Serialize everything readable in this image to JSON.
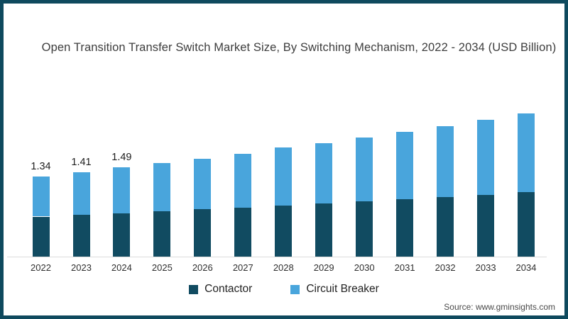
{
  "page": {
    "background": "#ffffff",
    "frame_color": "#0f4a5e"
  },
  "chart_data": {
    "type": "bar",
    "stacked": true,
    "title": "Open Transition Transfer Switch Market Size, By Switching Mechanism, 2022 - 2034 (USD Billion)",
    "categories": [
      "2022",
      "2023",
      "2024",
      "2025",
      "2026",
      "2027",
      "2028",
      "2029",
      "2030",
      "2031",
      "2032",
      "2033",
      "2034"
    ],
    "series": [
      {
        "name": "Contactor",
        "color": "#114b61",
        "values": [
          0.67,
          0.7,
          0.72,
          0.76,
          0.79,
          0.82,
          0.85,
          0.89,
          0.92,
          0.96,
          1.0,
          1.03,
          1.08
        ]
      },
      {
        "name": "Circuit Breaker",
        "color": "#49a5dc",
        "values": [
          0.67,
          0.71,
          0.77,
          0.81,
          0.85,
          0.9,
          0.97,
          1.01,
          1.07,
          1.12,
          1.18,
          1.26,
          1.31
        ]
      }
    ],
    "totals": [
      1.34,
      1.41,
      1.49,
      1.57,
      1.64,
      1.72,
      1.82,
      1.9,
      1.99,
      2.08,
      2.18,
      2.29,
      2.39
    ],
    "total_labels": [
      "1.34",
      "1.41",
      "1.49",
      "",
      "",
      "",
      "",
      "",
      "",
      "",
      "",
      "",
      ""
    ],
    "xlabel": "",
    "ylabel": "",
    "ylim": [
      0,
      2.6
    ],
    "grid": false,
    "legend_position": "bottom",
    "axis_line_color": "#dcdcdc"
  },
  "source": {
    "text": "Source: www.gminsights.com"
  }
}
